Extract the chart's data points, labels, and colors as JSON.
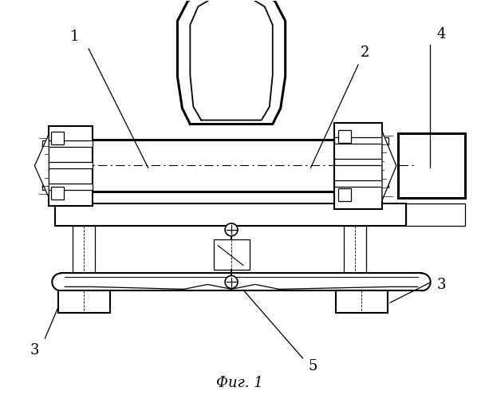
{
  "caption": "Фиг. 1",
  "bg_color": "#ffffff",
  "label_fontsize": 13,
  "lw_thin": 0.9,
  "lw_med": 1.5,
  "lw_thick": 2.2
}
